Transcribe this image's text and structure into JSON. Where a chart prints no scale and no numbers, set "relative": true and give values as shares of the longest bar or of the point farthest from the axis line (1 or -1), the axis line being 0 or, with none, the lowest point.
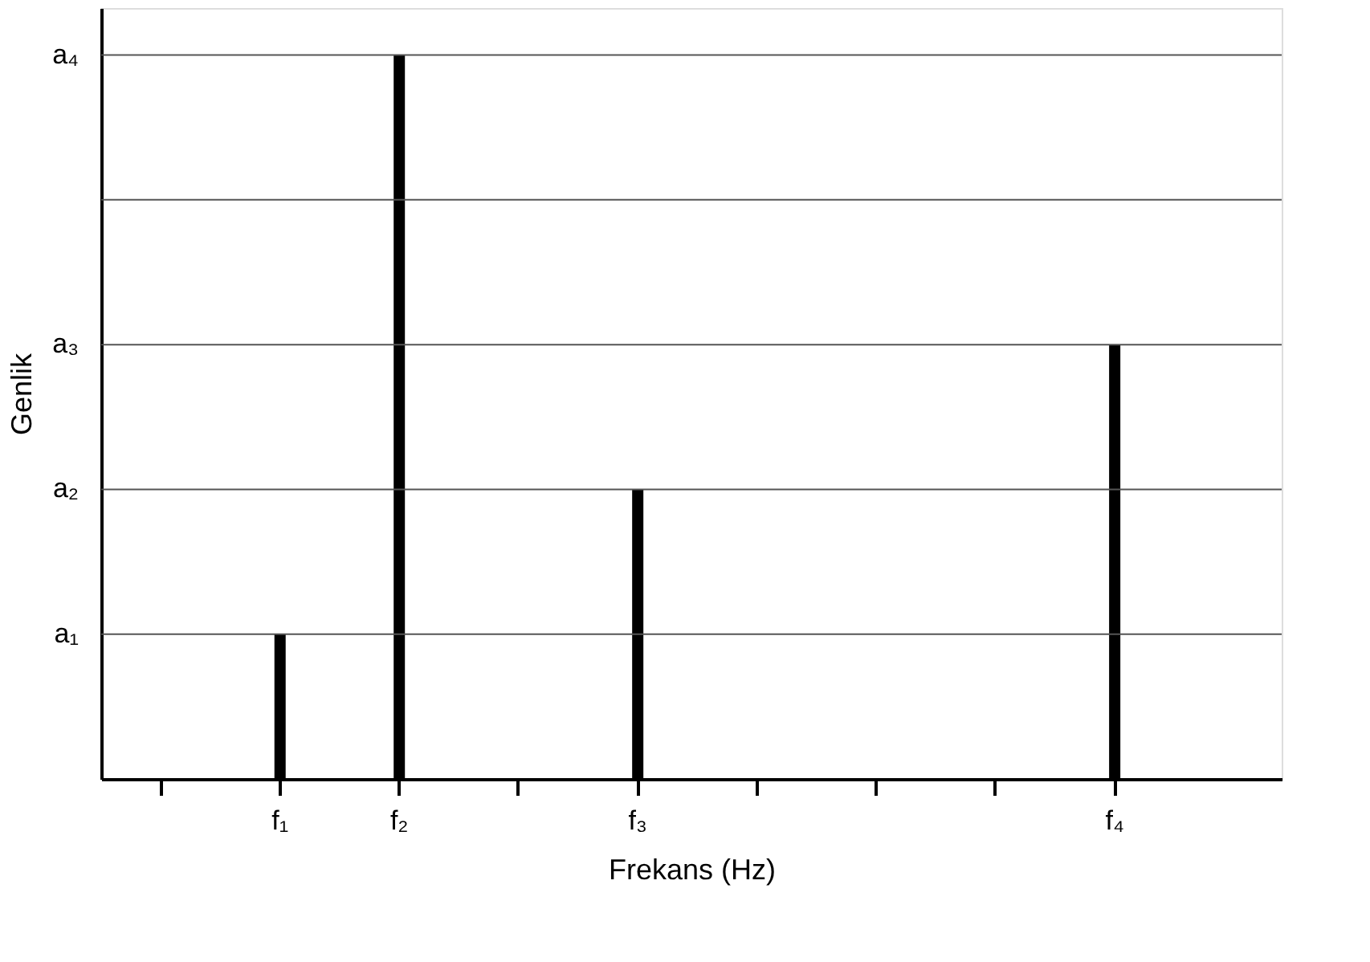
{
  "chart_data": {
    "type": "bar",
    "xlabel": "Frekans (Hz)",
    "ylabel": "Genlik",
    "relative": true,
    "categories": [
      null,
      "f₁",
      "f₂",
      null,
      "f₃",
      null,
      null,
      null,
      "f₄"
    ],
    "series": [
      {
        "color": "#000000",
        "values": [
          null,
          0.2,
          1,
          null,
          0.4,
          null,
          null,
          null,
          0.6
        ]
      }
    ],
    "ref_lines": [
      {
        "axis": "y",
        "value": 0.2,
        "label": "a₁",
        "color": "#555555"
      },
      {
        "axis": "y",
        "value": 0.4,
        "label": "a₂",
        "color": "#555555"
      },
      {
        "axis": "y",
        "value": 0.6,
        "label": "a₃",
        "color": "#555555"
      },
      {
        "axis": "y",
        "value": 0.8,
        "label": null,
        "color": "#555555"
      },
      {
        "axis": "y",
        "value": 1,
        "label": "a₄",
        "color": "#555555"
      }
    ]
  }
}
